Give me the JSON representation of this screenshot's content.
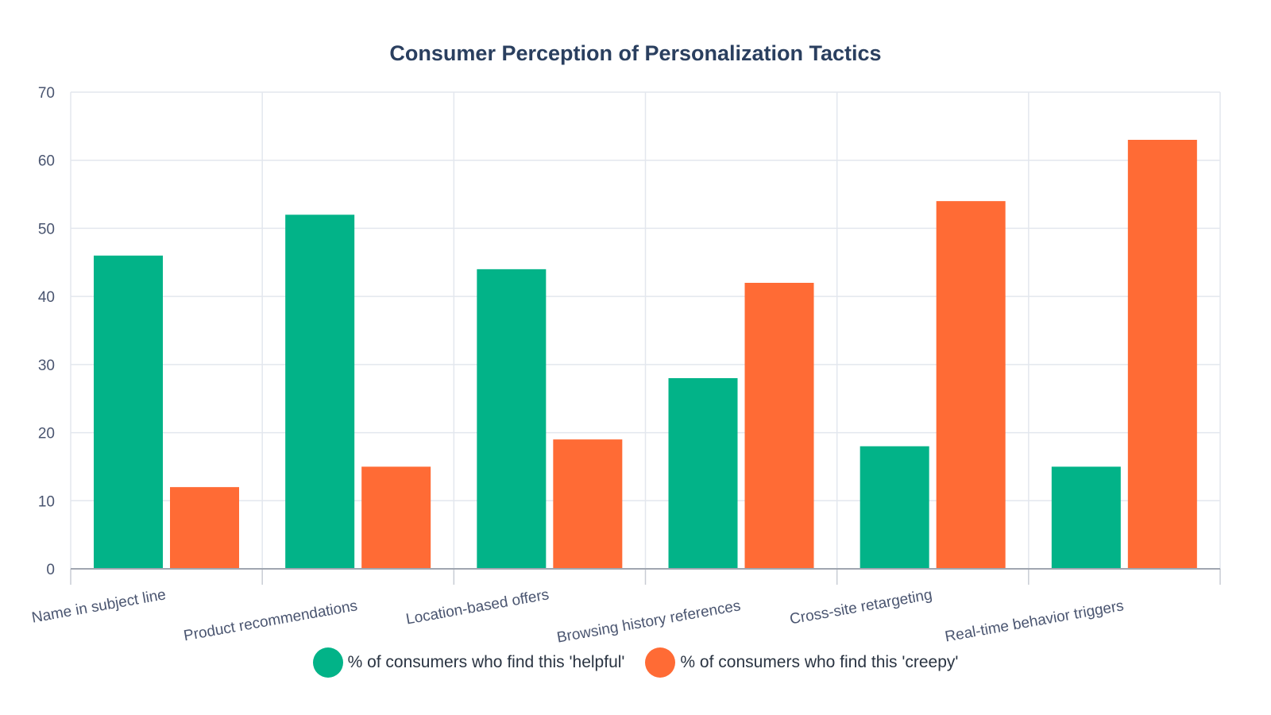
{
  "chart_data": {
    "type": "bar",
    "title": "Consumer Perception of Personalization Tactics",
    "categories": [
      "Name in subject line",
      "Product recommendations",
      "Location-based offers",
      "Browsing history references",
      "Cross-site retargeting",
      "Real-time behavior triggers"
    ],
    "series": [
      {
        "name": "% of consumers who find this 'helpful'",
        "color": "#02b388",
        "values": [
          46,
          52,
          44,
          28,
          18,
          15
        ]
      },
      {
        "name": "% of consumers who find this 'creepy'",
        "color": "#ff6b35",
        "values": [
          12,
          15,
          19,
          42,
          54,
          63
        ]
      }
    ],
    "ylim": [
      0,
      70
    ],
    "yticks": [
      0,
      10,
      20,
      30,
      40,
      50,
      60,
      70
    ],
    "grid": true,
    "legend": "bottom-center",
    "xlabel": "",
    "ylabel": ""
  }
}
